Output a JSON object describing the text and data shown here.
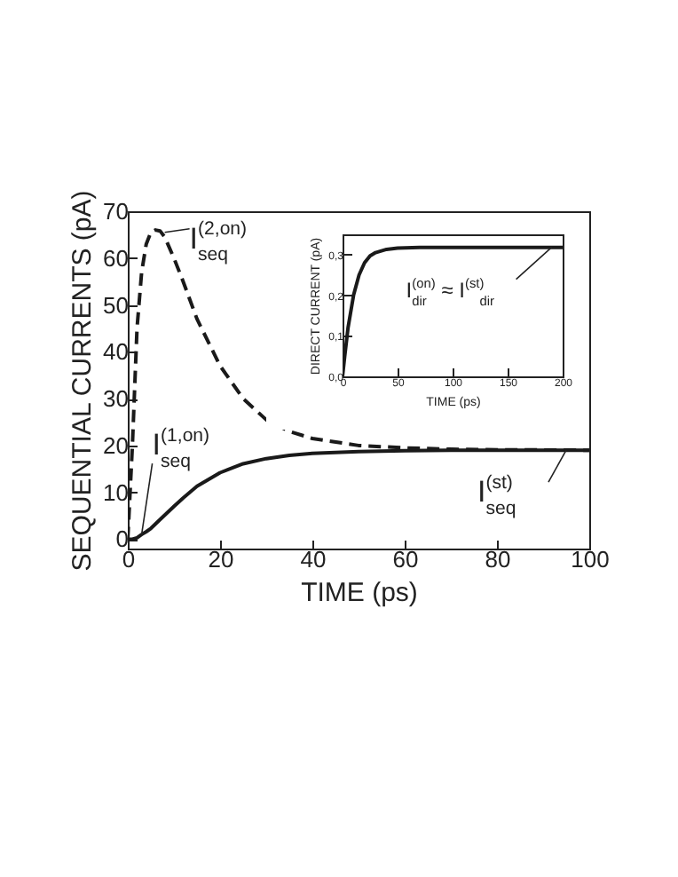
{
  "chart_data": [
    {
      "type": "line",
      "xlabel": "TIME (ps)",
      "ylabel": "SEQUENTIAL CURRENTS (pA)",
      "xlim": [
        0,
        100
      ],
      "xticks": [
        0,
        20,
        40,
        60,
        80,
        100
      ],
      "ylim": [
        -2,
        70
      ],
      "yticks": [
        0,
        10,
        20,
        30,
        40,
        50,
        60,
        70
      ],
      "grid": false,
      "series": [
        {
          "color": "#1a1a1a",
          "line_style": "solid",
          "x": [
            0,
            1,
            2,
            3,
            4,
            5,
            7,
            10,
            12,
            15,
            20,
            25,
            30,
            35,
            40,
            50,
            60,
            70,
            80,
            100
          ],
          "values": [
            0,
            0,
            0.3,
            1,
            1.6,
            2.3,
            4.2,
            7,
            8.8,
            11.3,
            14.2,
            16.1,
            17.2,
            17.9,
            18.3,
            18.7,
            18.9,
            19,
            19,
            19
          ]
        },
        {
          "color": "#1a1a1a",
          "line_style": "dashed",
          "x": [
            0,
            1,
            2,
            3,
            4,
            5,
            6,
            7,
            8,
            10,
            12,
            15,
            20,
            25,
            30,
            35,
            40,
            50,
            60,
            70,
            80,
            100
          ],
          "values": [
            0,
            20,
            45,
            57,
            63,
            65.5,
            66,
            65.8,
            64.5,
            60,
            55,
            47,
            37,
            30,
            25.5,
            23,
            21.5,
            20,
            19.5,
            19.2,
            19.1,
            19
          ]
        }
      ],
      "annotations": [
        {
          "text": "I$^{(2,on)}$$_{seq}$",
          "x": 8,
          "y": 65.5
        },
        {
          "text": "I$^{(1,on)}$$_{seq}$",
          "x": 3,
          "y": 1
        },
        {
          "text": "I$^{(st)}$$_{seq}$",
          "x": 95,
          "y": 19
        }
      ]
    },
    {
      "type": "line",
      "xlabel": "TIME (ps)",
      "ylabel": "DIRECT CURRENT (pA)",
      "xlim": [
        0,
        200
      ],
      "xticks": [
        0,
        50,
        100,
        150,
        200
      ],
      "ylim": [
        0,
        0.35
      ],
      "yticks": [
        {
          "value": 0,
          "label": "0,0"
        },
        {
          "value": 0.1,
          "label": "0,1"
        },
        {
          "value": 0.2,
          "label": "0,2"
        },
        {
          "value": 0.3,
          "label": "0,3"
        }
      ],
      "grid": false,
      "series": [
        {
          "color": "#1a1a1a",
          "line_style": "solid",
          "x": [
            0,
            2,
            5,
            10,
            15,
            20,
            25,
            30,
            40,
            50,
            70,
            100,
            150,
            200
          ],
          "values": [
            0,
            0.05,
            0.12,
            0.2,
            0.25,
            0.28,
            0.297,
            0.305,
            0.313,
            0.316,
            0.318,
            0.318,
            0.318,
            0.318
          ]
        }
      ],
      "annotations": [
        {
          "text": "I$^{(on)}$$_{dir}$ ≈ I$^{(st)}$$_{dir}$",
          "x": 190,
          "y": 0.318
        }
      ]
    }
  ]
}
